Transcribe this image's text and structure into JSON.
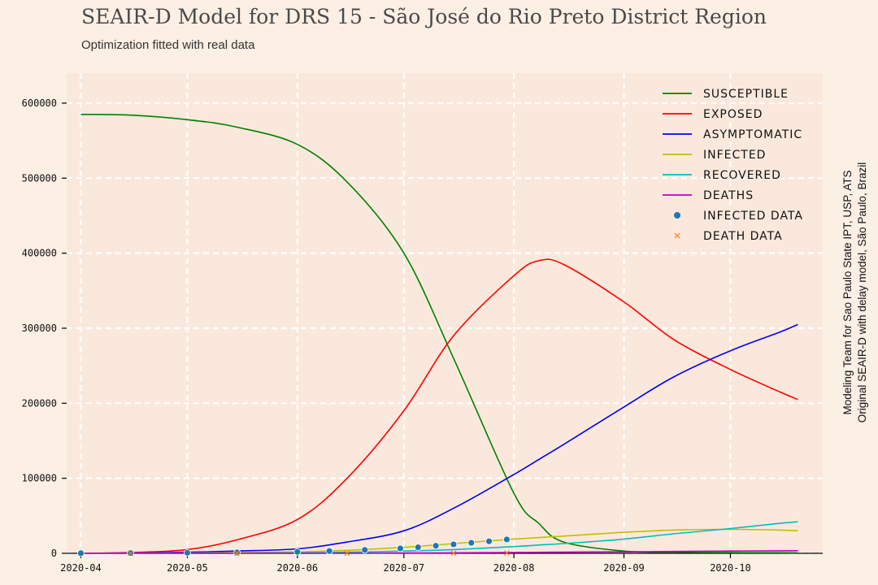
{
  "title": "SEAIR-D Model for DRS 15 - São José do Rio Preto District Region",
  "subtitle": "Optimization fitted with real data",
  "credits": {
    "line1": "Modeling Team for Sao Paulo State IPT, USP, ATS",
    "line2": "Original SEAIR-D with delay model, São Paulo, Brazil"
  },
  "chart_data": {
    "type": "line",
    "x": [
      "2020-04-01",
      "2020-04-15",
      "2020-05-01",
      "2020-05-15",
      "2020-06-01",
      "2020-06-15",
      "2020-07-01",
      "2020-07-15",
      "2020-08-01",
      "2020-08-08",
      "2020-08-15",
      "2020-09-01",
      "2020-09-15",
      "2020-10-01",
      "2020-10-15",
      "2020-10-20"
    ],
    "x_tick_labels": [
      "2020-04",
      "2020-05",
      "2020-06",
      "2020-07",
      "2020-08",
      "2020-09",
      "2020-10"
    ],
    "y_tick_labels": [
      "0",
      "100000",
      "200000",
      "300000",
      "400000",
      "500000",
      "600000"
    ],
    "ylim": [
      0,
      640000
    ],
    "grid": true,
    "legend_position": "top-right",
    "series": [
      {
        "name": "Susceptible",
        "color": "#008000",
        "values": [
          585000,
          584000,
          578000,
          568000,
          545000,
          495000,
          400000,
          260000,
          80000,
          40000,
          15000,
          3000,
          1500,
          1000,
          800,
          700
        ]
      },
      {
        "name": "Exposed",
        "color": "#ff0000",
        "values": [
          0,
          1000,
          5000,
          18000,
          45000,
          100000,
          190000,
          290000,
          370000,
          390000,
          385000,
          335000,
          285000,
          245000,
          215000,
          205000
        ]
      },
      {
        "name": "Asymptomatic",
        "color": "#0000ff",
        "values": [
          0,
          500,
          1500,
          3000,
          6000,
          15000,
          30000,
          60000,
          105000,
          125000,
          145000,
          195000,
          235000,
          270000,
          295000,
          305000
        ]
      },
      {
        "name": "Infected",
        "color": "#bfbf00",
        "values": [
          0,
          200,
          500,
          1000,
          2000,
          4000,
          8000,
          13000,
          19000,
          21000,
          23000,
          28000,
          31000,
          32000,
          31000,
          30000
        ]
      },
      {
        "name": "Recovered",
        "color": "#00bfbf",
        "values": [
          0,
          0,
          100,
          300,
          800,
          1500,
          3000,
          5000,
          9000,
          11000,
          13000,
          19000,
          26000,
          33000,
          40000,
          42000
        ]
      },
      {
        "name": "Deaths",
        "color": "#bf00bf",
        "values": [
          0,
          0,
          0,
          50,
          100,
          200,
          400,
          700,
          1100,
          1300,
          1500,
          2000,
          2500,
          3000,
          3400,
          3500
        ]
      }
    ],
    "scatter": [
      {
        "name": "Infected data",
        "color": "#1f77b4",
        "marker": "circle",
        "x": [
          "2020-04-01",
          "2020-04-15",
          "2020-05-01",
          "2020-05-15",
          "2020-06-01",
          "2020-06-10",
          "2020-06-20",
          "2020-06-30",
          "2020-07-05",
          "2020-07-10",
          "2020-07-15",
          "2020-07-20",
          "2020-07-25",
          "2020-07-30"
        ],
        "values": [
          100,
          300,
          700,
          1200,
          2000,
          3000,
          4500,
          6500,
          8000,
          10000,
          12000,
          14000,
          16000,
          18500
        ]
      },
      {
        "name": "Death data",
        "color": "#ff7f0e",
        "marker": "x",
        "x": [
          "2020-04-15",
          "2020-05-15",
          "2020-06-15",
          "2020-07-15",
          "2020-07-30"
        ],
        "values": [
          5,
          20,
          60,
          200,
          420
        ]
      }
    ]
  }
}
